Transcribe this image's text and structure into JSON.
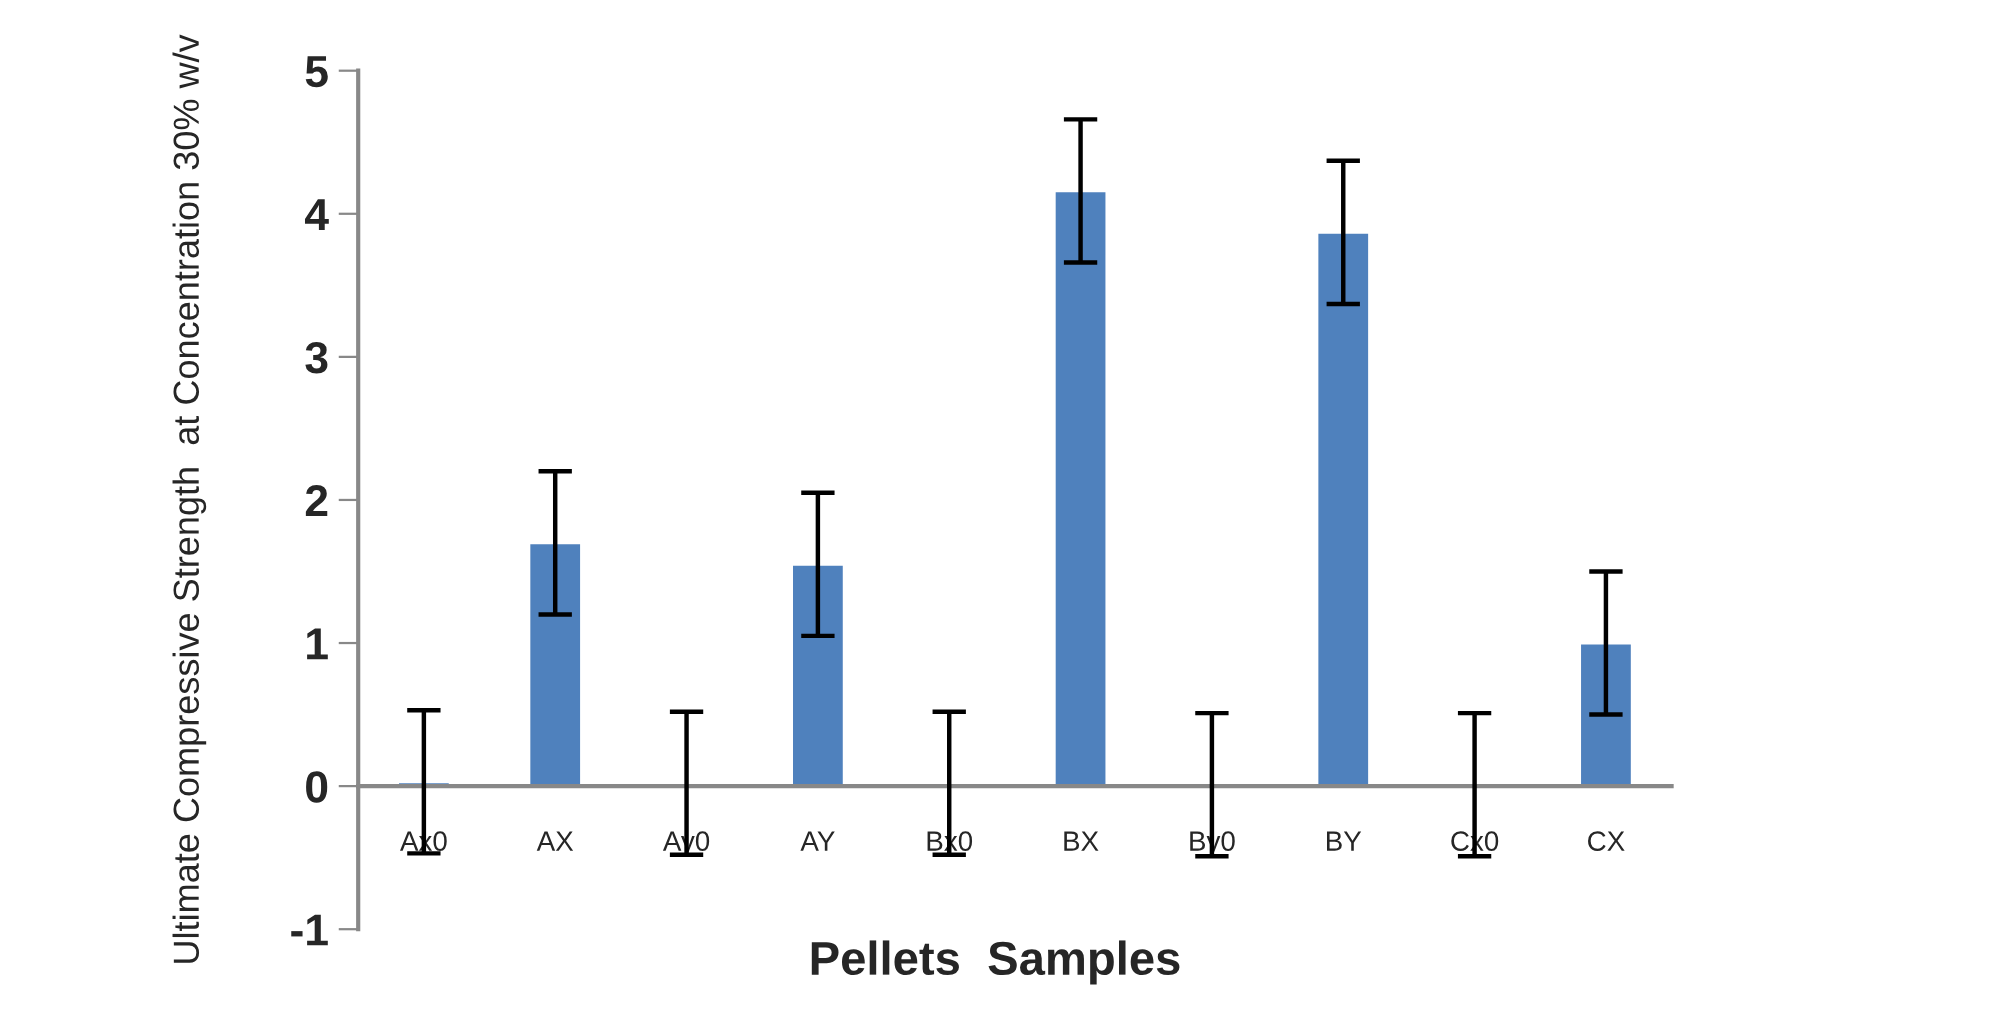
{
  "chart_data": {
    "type": "bar",
    "xlabel": "Pellets  Samples",
    "ylabel": "Ultimate Compressive Strength  at Concentration 30% w/v",
    "categories": [
      "Ax0",
      "AX",
      "Ay0",
      "AY",
      "Bx0",
      "BX",
      "By0",
      "BY",
      "Cx0",
      "CX"
    ],
    "values": [
      0.03,
      1.7,
      0.02,
      1.55,
      0.02,
      4.16,
      0.01,
      3.87,
      0.01,
      1.0
    ],
    "errors": [
      0.5,
      0.5,
      0.5,
      0.5,
      0.5,
      0.5,
      0.5,
      0.5,
      0.5,
      0.5
    ],
    "color": "#4f81bd",
    "ylim": [
      -1,
      5
    ],
    "yticks": [
      -1,
      0,
      1,
      2,
      3,
      4,
      5
    ],
    "grid": false,
    "legend": false
  }
}
